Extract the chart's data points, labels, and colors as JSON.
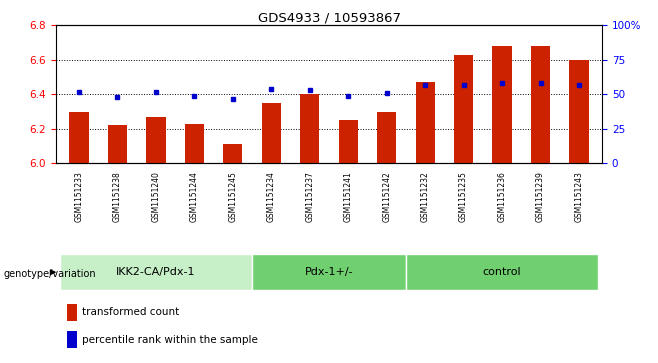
{
  "title": "GDS4933 / 10593867",
  "samples": [
    "GSM1151233",
    "GSM1151238",
    "GSM1151240",
    "GSM1151244",
    "GSM1151245",
    "GSM1151234",
    "GSM1151237",
    "GSM1151241",
    "GSM1151242",
    "GSM1151232",
    "GSM1151235",
    "GSM1151236",
    "GSM1151239",
    "GSM1151243"
  ],
  "red_values": [
    6.3,
    6.22,
    6.27,
    6.23,
    6.11,
    6.35,
    6.4,
    6.25,
    6.3,
    6.47,
    6.63,
    6.68,
    6.68,
    6.6
  ],
  "blue_percentile": [
    52,
    48,
    52,
    49,
    47,
    54,
    53,
    49,
    51,
    57,
    57,
    58,
    58,
    57
  ],
  "ylim_left": [
    6.0,
    6.8
  ],
  "ylim_right": [
    0,
    100
  ],
  "yticks_left": [
    6.0,
    6.2,
    6.4,
    6.6,
    6.8
  ],
  "yticks_right": [
    0,
    25,
    50,
    75,
    100
  ],
  "ytick_labels_right": [
    "0",
    "25",
    "50",
    "75",
    "100%"
  ],
  "groups": [
    {
      "label": "IKK2-CA/Pdx-1",
      "start": 0,
      "end": 5
    },
    {
      "label": "Pdx-1+/-",
      "start": 5,
      "end": 9
    },
    {
      "label": "control",
      "start": 9,
      "end": 14
    }
  ],
  "group_colors": [
    "#c8f0c8",
    "#70d070",
    "#70d070"
  ],
  "bar_color": "#cc2200",
  "dot_color": "#0000cc",
  "bar_width": 0.5,
  "legend_red": "transformed count",
  "legend_blue": "percentile rank within the sample",
  "group_row_label": "genotype/variation",
  "sample_bg_color": "#cccccc"
}
